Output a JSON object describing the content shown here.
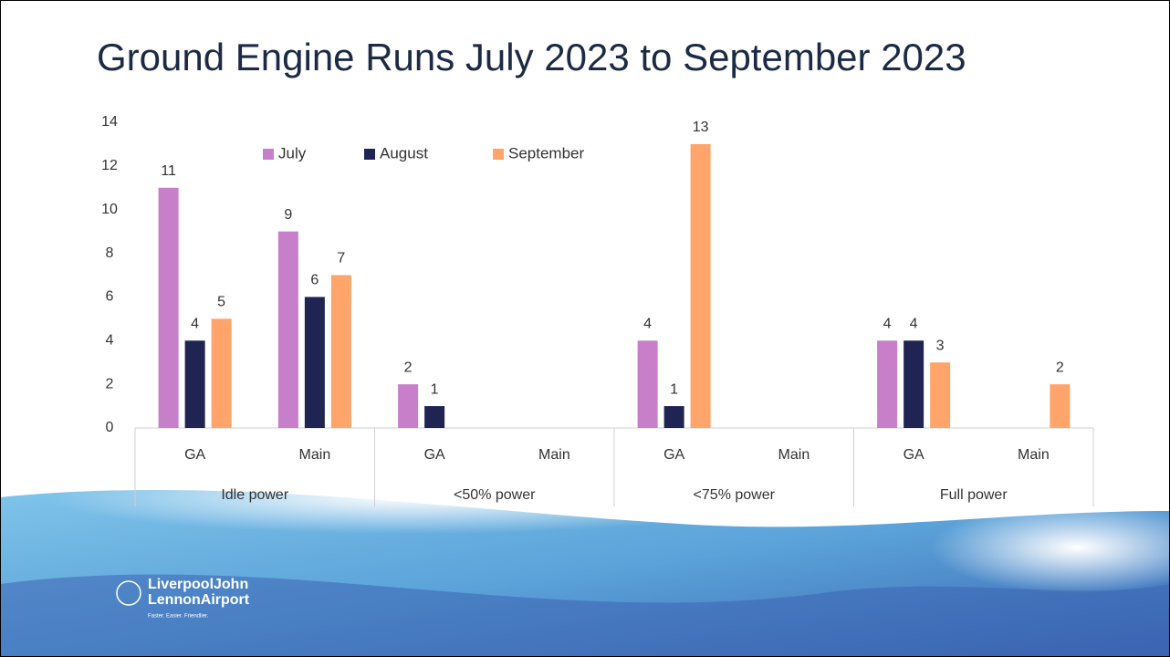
{
  "chart_data": {
    "type": "bar",
    "title": "Ground Engine Runs July 2023 to September 2023",
    "categories": [
      "GA",
      "Main",
      "GA",
      "Main",
      "GA",
      "Main",
      "GA",
      "Main"
    ],
    "groups": [
      "Idle power",
      "<50% power",
      "<75% power",
      "Full power"
    ],
    "series": [
      {
        "name": "July",
        "color": "#c77fc9",
        "values": [
          11,
          9,
          2,
          null,
          4,
          null,
          4,
          null
        ]
      },
      {
        "name": "August",
        "color": "#1f2452",
        "values": [
          4,
          6,
          1,
          null,
          1,
          null,
          4,
          null
        ]
      },
      {
        "name": "September",
        "color": "#ffa46b",
        "values": [
          5,
          7,
          null,
          null,
          13,
          null,
          3,
          2
        ]
      }
    ],
    "ylim": [
      0,
      14
    ],
    "yticks": [
      0,
      2,
      4,
      6,
      8,
      10,
      12,
      14
    ],
    "grid": false,
    "legend": "top"
  },
  "logo": {
    "line1": "LiverpoolJohn",
    "line2": "LennonAirport",
    "tagline": "Faster. Easier. Friendlier."
  }
}
